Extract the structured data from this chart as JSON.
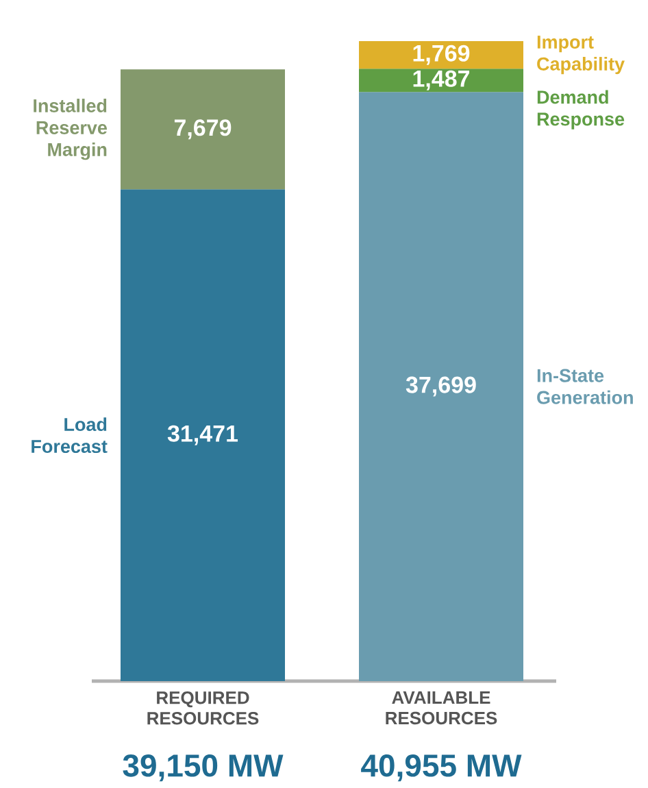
{
  "chart_data": {
    "type": "bar",
    "stacked": true,
    "categories": [
      "REQUIRED RESOURCES",
      "AVAILABLE RESOURCES"
    ],
    "series": [
      {
        "name": "Load Forecast",
        "color": "#2f7898",
        "values": [
          31471,
          null
        ],
        "value_labels": [
          "31,471",
          null
        ]
      },
      {
        "name": "Installed Reserve Margin",
        "color": "#84996c",
        "values": [
          7679,
          null
        ],
        "value_labels": [
          "7,679",
          null
        ]
      },
      {
        "name": "In-State Generation",
        "color": "#6a9caf",
        "values": [
          null,
          37699
        ],
        "value_labels": [
          null,
          "37,699"
        ]
      },
      {
        "name": "Demand Response",
        "color": "#5f9e44",
        "values": [
          null,
          1487
        ],
        "value_labels": [
          null,
          "1,487"
        ]
      },
      {
        "name": "Import Capability",
        "color": "#dfb02a",
        "values": [
          null,
          1769
        ],
        "value_labels": [
          null,
          "1,769"
        ]
      }
    ],
    "totals": [
      "39,150 MW",
      "40,955 MW"
    ]
  }
}
